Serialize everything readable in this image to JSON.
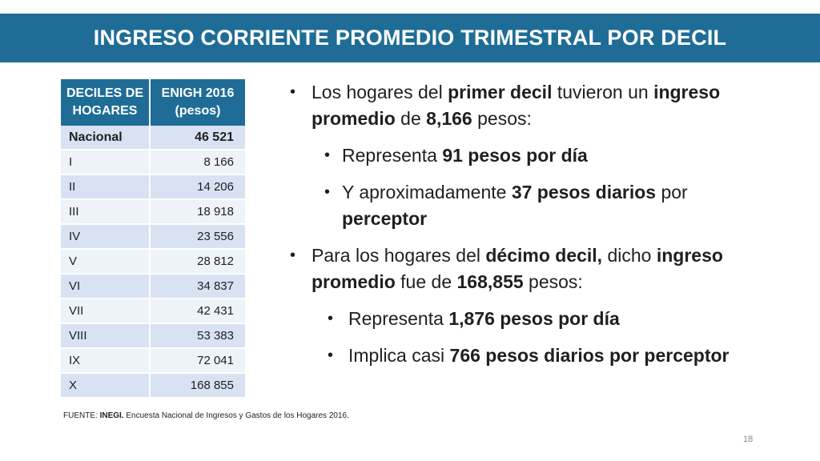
{
  "title": "INGRESO CORRIENTE PROMEDIO TRIMESTRAL POR DECIL",
  "table": {
    "header_col1_line1": "DECILES DE",
    "header_col1_line2": "HOGARES",
    "header_col2_line1": "ENIGH 2016",
    "header_col2_line2": "(pesos)",
    "rows": [
      {
        "label": "Nacional",
        "value": "46 521"
      },
      {
        "label": "I",
        "value": "8 166"
      },
      {
        "label": "II",
        "value": "14 206"
      },
      {
        "label": "III",
        "value": "18 918"
      },
      {
        "label": "IV",
        "value": "23 556"
      },
      {
        "label": "V",
        "value": "28 812"
      },
      {
        "label": "VI",
        "value": "34 837"
      },
      {
        "label": "VII",
        "value": "42 431"
      },
      {
        "label": "VIII",
        "value": "53 383"
      },
      {
        "label": "IX",
        "value": "72 041"
      },
      {
        "label": "X",
        "value": "168 855"
      }
    ]
  },
  "bullets": {
    "b1": {
      "t1": "Los hogares del ",
      "b1": "primer decil",
      "t2": " tuvieron un ",
      "b2": "ingreso promedio",
      "t3": " de ",
      "b3": "8,166",
      "t4": " pesos:"
    },
    "b1a": {
      "t1": "Representa ",
      "b1": "91 pesos por día"
    },
    "b1b": {
      "t1": "Y aproximadamente ",
      "b1": "37 pesos diarios",
      "t2": " por ",
      "b2": "perceptor"
    },
    "b2": {
      "t1": "Para los hogares del ",
      "b1": "décimo decil,",
      "t2": " dicho ",
      "b2": "ingreso promedio",
      "t3": " fue de ",
      "b3": "168,855",
      "t4": " pesos:"
    },
    "b2a": {
      "t1": "Representa ",
      "b1": "1,876 pesos por día"
    },
    "b2b": {
      "t1": "Implica casi ",
      "b1": "766 pesos diarios por perceptor"
    }
  },
  "source": {
    "prefix": "FUENTE: ",
    "org": "INEGI.",
    "text": " Encuesta Nacional de Ingresos y Gastos de los Hogares 2016."
  },
  "page_number": "18",
  "colors": {
    "accent": "#1f6d96",
    "row_odd": "#d9e2f3",
    "row_even": "#eef2f9"
  }
}
